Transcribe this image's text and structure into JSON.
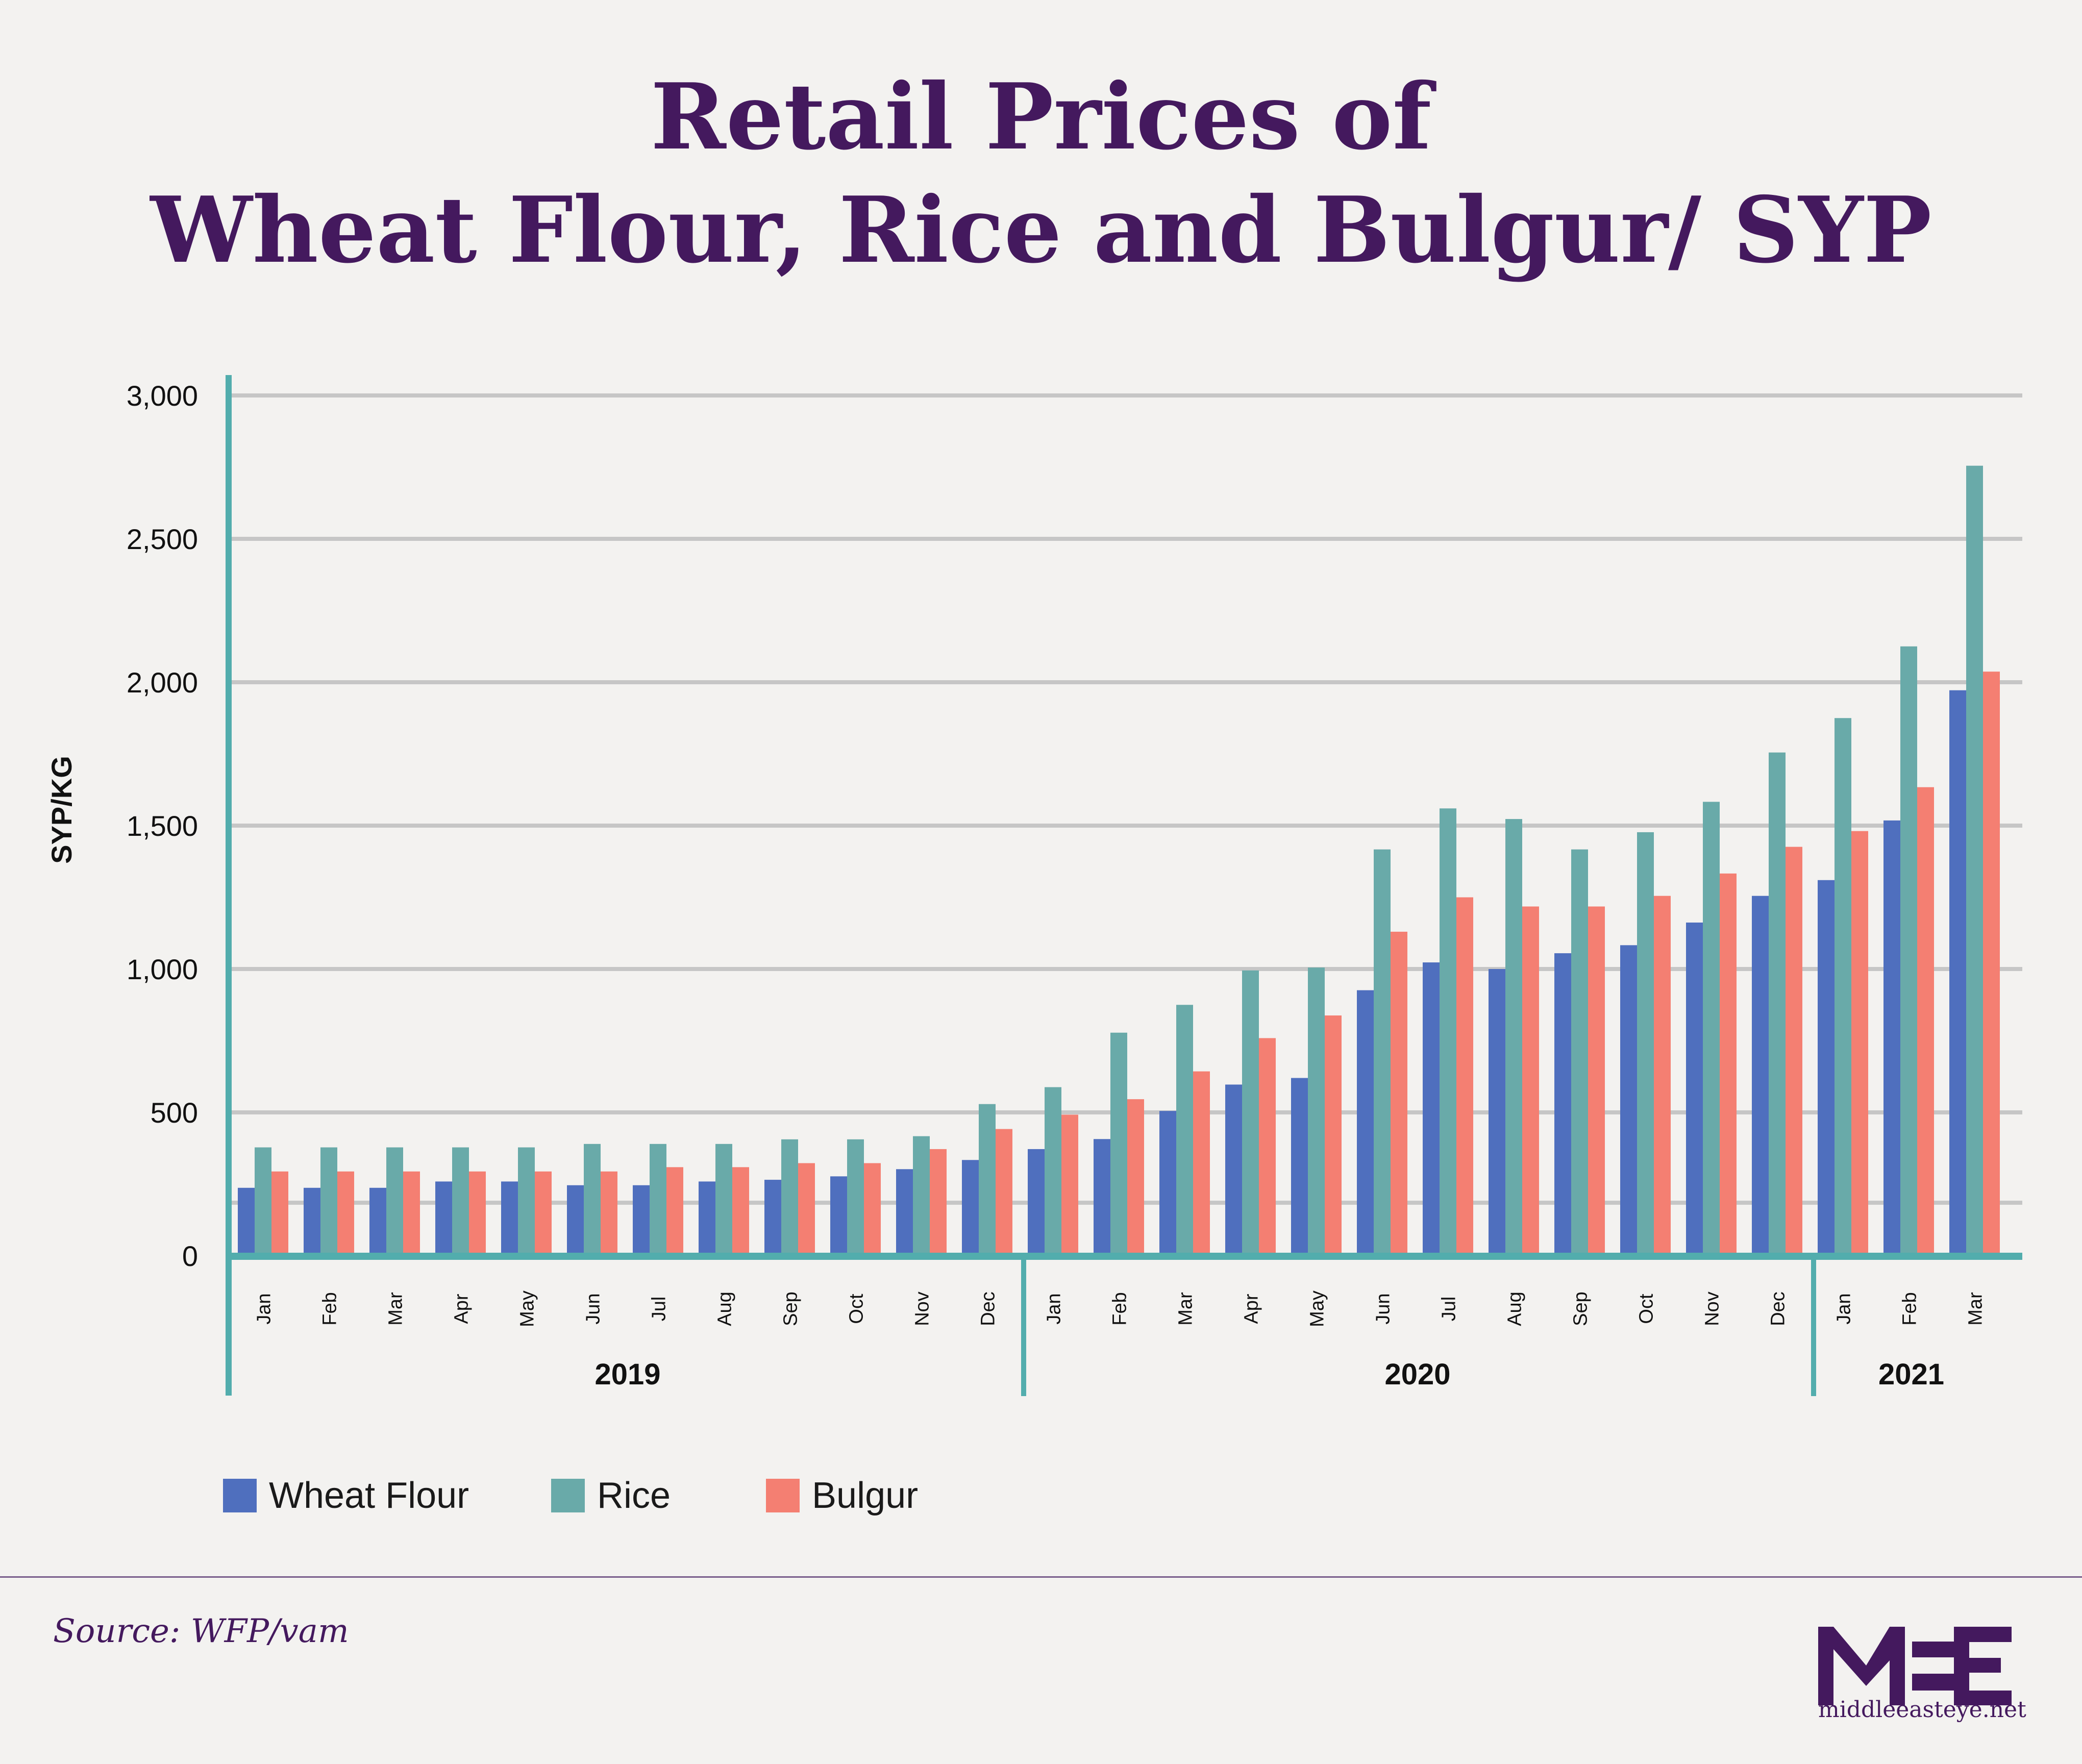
{
  "title_line1": "Retail Prices of",
  "title_line2": "Wheat Flour, Rice and Bulgur/ SYP",
  "source": "Source: WFP/vam",
  "logo": {
    "mark": "MEE",
    "url": "middleeasteye.net"
  },
  "colors": {
    "wheat": "#4f6fbe",
    "rice": "#69aaa9",
    "bulgur": "#f47f72",
    "axis": "#52adad",
    "grid": "#c6c6c6",
    "title": "#44195e"
  },
  "chart_data": {
    "type": "bar",
    "title": "Retail Prices of Wheat Flour, Rice and Bulgur/ SYP",
    "ylabel": "SYP/KG",
    "xlabel": "",
    "ylim": [
      0,
      3000
    ],
    "yticks": [
      0,
      500,
      1000,
      1500,
      2000,
      2500,
      3000
    ],
    "ytick_labels": [
      "0",
      "500",
      "1,000",
      "1,500",
      "2,000",
      "2,500",
      "3,000"
    ],
    "gridlines": [
      185,
      500,
      1000,
      1500,
      2000,
      2500,
      3000
    ],
    "grid": true,
    "legend_placement": "bottom-left",
    "categories": [
      "Jan",
      "Feb",
      "Mar",
      "Apr",
      "May",
      "Jun",
      "Jul",
      "Aug",
      "Sep",
      "Oct",
      "Nov",
      "Dec",
      "Jan",
      "Feb",
      "Mar",
      "Apr",
      "May",
      "Jun",
      "Jul",
      "Aug",
      "Sep",
      "Oct",
      "Nov",
      "Dec",
      "Jan",
      "Feb",
      "Mar"
    ],
    "year_groups": [
      {
        "label": "2019",
        "count": 12
      },
      {
        "label": "2020",
        "count": 12
      },
      {
        "label": "2021",
        "count": 3
      }
    ],
    "series": [
      {
        "name": "Wheat Flour",
        "color": "#4f6fbe",
        "values": [
          237,
          237,
          237,
          259,
          259,
          246,
          246,
          259,
          265,
          277,
          302,
          334,
          372,
          407,
          505,
          597,
          620,
          926,
          1023,
          1000,
          1055,
          1083,
          1162,
          1255,
          1310,
          1518,
          1972
        ]
      },
      {
        "name": "Rice",
        "color": "#69aaa9",
        "values": [
          378,
          378,
          378,
          378,
          378,
          390,
          390,
          390,
          406,
          406,
          417,
          529,
          588,
          778,
          875,
          995,
          1005,
          1417,
          1560,
          1523,
          1417,
          1477,
          1583,
          1755,
          1875,
          2125,
          2755
        ]
      },
      {
        "name": "Bulgur",
        "color": "#f47f72",
        "values": [
          294,
          294,
          294,
          294,
          294,
          294,
          309,
          309,
          323,
          323,
          372,
          442,
          492,
          546,
          643,
          759,
          838,
          1130,
          1250,
          1218,
          1218,
          1255,
          1333,
          1426,
          1481,
          1634,
          2037
        ]
      }
    ]
  }
}
